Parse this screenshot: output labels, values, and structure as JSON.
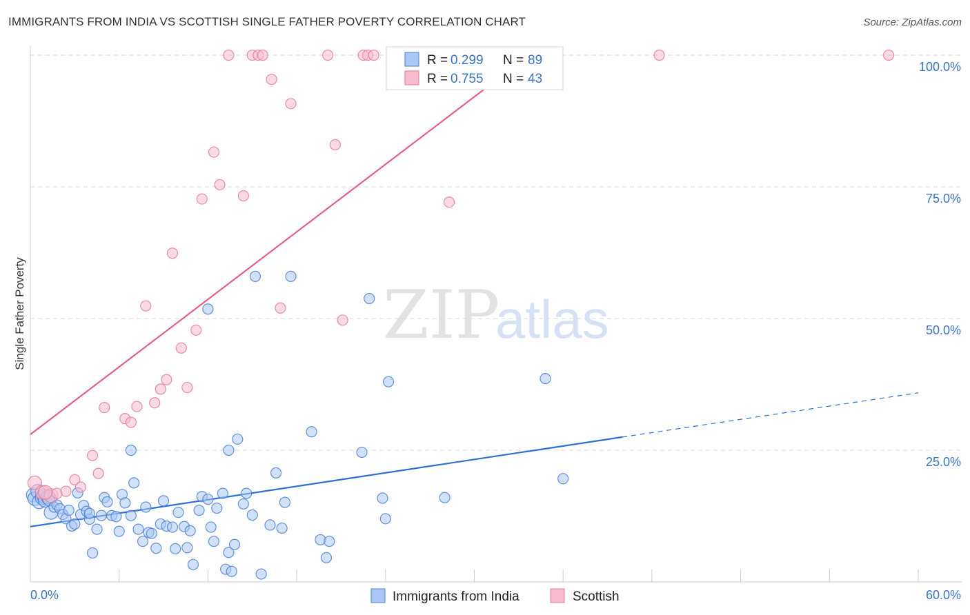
{
  "header": {
    "title": "IMMIGRANTS FROM INDIA VS SCOTTISH SINGLE FATHER POVERTY CORRELATION CHART",
    "source": "Source: ZipAtlas.com"
  },
  "watermark": {
    "zip": "ZIP",
    "atlas": "atlas"
  },
  "colors": {
    "blue": "#4a7fd4",
    "blue_fill": "#a9c8f3",
    "blue_line": "#2d6fd0",
    "pink": "#e8799b",
    "pink_fill": "#f6bccd",
    "pink_line": "#e0608a",
    "tick_text": "#3a74c4",
    "grid": "#d8d8d8"
  },
  "legend_top": {
    "rows": [
      {
        "r_label": "R = ",
        "r_value": "0.299",
        "n_label": "N = ",
        "n_value": "89",
        "color": "blue"
      },
      {
        "r_label": "R = ",
        "r_value": "0.755",
        "n_label": "N = ",
        "n_value": "43",
        "color": "pink"
      }
    ]
  },
  "legend_bottom": [
    {
      "label": "Immigrants from India",
      "color": "blue"
    },
    {
      "label": "Scottish",
      "color": "pink"
    }
  ],
  "chart_data": {
    "type": "scatter",
    "title": "IMMIGRANTS FROM INDIA VS SCOTTISH SINGLE FATHER POVERTY CORRELATION CHART",
    "xlabel": "",
    "ylabel": "Single Father Poverty",
    "xlim": [
      0,
      60
    ],
    "ylim": [
      0,
      100
    ],
    "x_tick_labels": [
      "0.0%",
      "60.0%"
    ],
    "y_tick_labels": [
      "25.0%",
      "50.0%",
      "75.0%",
      "100.0%"
    ],
    "y_ticks": [
      25,
      50,
      75,
      100
    ],
    "x_ticks": [
      0,
      6,
      12,
      18,
      24,
      30,
      36,
      42,
      48,
      54,
      60
    ],
    "grid": true,
    "series": [
      {
        "name": "Immigrants from India",
        "color": "blue",
        "trend": {
          "x0": 0,
          "y0": 10.5,
          "x1": 40,
          "y1": 27.5,
          "dash_to_x": 60,
          "dash_to_y": 35.9
        },
        "points": [
          [
            0.2,
            16.5
          ],
          [
            0.3,
            15.8
          ],
          [
            0.5,
            17.2
          ],
          [
            0.6,
            15.2
          ],
          [
            0.8,
            16.0
          ],
          [
            0.9,
            16.3
          ],
          [
            1.0,
            15.5
          ],
          [
            1.2,
            16.1
          ],
          [
            1.3,
            15.7
          ],
          [
            1.4,
            13.2
          ],
          [
            1.6,
            14.2
          ],
          [
            1.8,
            14.6
          ],
          [
            2.0,
            13.9
          ],
          [
            2.2,
            12.8
          ],
          [
            2.4,
            12.0
          ],
          [
            2.6,
            13.6
          ],
          [
            2.8,
            10.6
          ],
          [
            3.0,
            11.0
          ],
          [
            3.2,
            16.9
          ],
          [
            3.4,
            12.8
          ],
          [
            3.6,
            14.5
          ],
          [
            3.8,
            13.4
          ],
          [
            4.0,
            11.9
          ],
          [
            4.2,
            5.5
          ],
          [
            4.5,
            10.0
          ],
          [
            4.8,
            12.6
          ],
          [
            5.0,
            16.0
          ],
          [
            5.2,
            15.2
          ],
          [
            5.5,
            12.6
          ],
          [
            5.8,
            12.4
          ],
          [
            6.0,
            9.6
          ],
          [
            6.2,
            16.6
          ],
          [
            6.4,
            15.0
          ],
          [
            6.8,
            12.6
          ],
          [
            7.0,
            18.8
          ],
          [
            7.3,
            10.0
          ],
          [
            7.6,
            7.7
          ],
          [
            7.8,
            14.2
          ],
          [
            8.0,
            9.4
          ],
          [
            8.2,
            9.2
          ],
          [
            8.5,
            6.4
          ],
          [
            8.8,
            11.0
          ],
          [
            9.0,
            15.4
          ],
          [
            9.2,
            10.6
          ],
          [
            9.6,
            10.4
          ],
          [
            9.8,
            6.3
          ],
          [
            10.0,
            13.2
          ],
          [
            10.4,
            10.5
          ],
          [
            10.6,
            6.5
          ],
          [
            10.8,
            9.7
          ],
          [
            11.0,
            3.3
          ],
          [
            11.4,
            13.6
          ],
          [
            11.6,
            16.2
          ],
          [
            12.0,
            15.7
          ],
          [
            12.2,
            10.4
          ],
          [
            12.4,
            7.7
          ],
          [
            12.6,
            14.0
          ],
          [
            13.0,
            16.8
          ],
          [
            13.2,
            2.4
          ],
          [
            13.4,
            5.6
          ],
          [
            13.6,
            2.0
          ],
          [
            13.8,
            7.1
          ],
          [
            14.0,
            27.1
          ],
          [
            14.4,
            14.8
          ],
          [
            14.6,
            16.8
          ],
          [
            15.0,
            12.7
          ],
          [
            15.6,
            1.5
          ],
          [
            16.2,
            10.8
          ],
          [
            16.6,
            20.7
          ],
          [
            17.0,
            10.2
          ],
          [
            17.2,
            15.1
          ],
          [
            17.6,
            58.0
          ],
          [
            19.0,
            28.5
          ],
          [
            19.6,
            8.0
          ],
          [
            20.0,
            4.6
          ],
          [
            20.2,
            7.7
          ],
          [
            22.4,
            24.6
          ],
          [
            22.9,
            53.8
          ],
          [
            23.8,
            15.9
          ],
          [
            24.0,
            12.0
          ],
          [
            24.2,
            38.0
          ],
          [
            28.0,
            16.0
          ],
          [
            34.8,
            38.6
          ],
          [
            36.0,
            19.6
          ],
          [
            12.0,
            51.8
          ],
          [
            15.2,
            58.0
          ],
          [
            6.8,
            25.0
          ],
          [
            13.4,
            25.0
          ],
          [
            4.0,
            13.0
          ]
        ]
      },
      {
        "name": "Scottish",
        "color": "pink",
        "trend": {
          "x0": 0,
          "y0": 28.0,
          "x1": 33.7,
          "y1": 100
        },
        "points": [
          [
            0.3,
            18.8
          ],
          [
            0.8,
            17.0
          ],
          [
            1.4,
            16.4
          ],
          [
            1.8,
            16.8
          ],
          [
            2.4,
            17.2
          ],
          [
            3.0,
            19.4
          ],
          [
            3.4,
            18.0
          ],
          [
            4.2,
            24.0
          ],
          [
            4.6,
            20.6
          ],
          [
            5.0,
            33.1
          ],
          [
            6.4,
            31.0
          ],
          [
            6.8,
            30.3
          ],
          [
            7.2,
            33.3
          ],
          [
            7.8,
            52.4
          ],
          [
            8.4,
            34.0
          ],
          [
            8.8,
            36.6
          ],
          [
            9.2,
            38.4
          ],
          [
            9.6,
            62.4
          ],
          [
            10.2,
            44.4
          ],
          [
            10.6,
            36.9
          ],
          [
            11.2,
            47.8
          ],
          [
            11.6,
            72.7
          ],
          [
            12.4,
            81.6
          ],
          [
            12.8,
            75.4
          ],
          [
            14.4,
            73.3
          ],
          [
            13.4,
            100
          ],
          [
            15.0,
            100
          ],
          [
            15.4,
            100
          ],
          [
            15.7,
            100
          ],
          [
            16.3,
            95.4
          ],
          [
            16.9,
            52.0
          ],
          [
            17.6,
            90.8
          ],
          [
            20.1,
            100
          ],
          [
            20.6,
            83.0
          ],
          [
            21.1,
            49.7
          ],
          [
            22.5,
            100
          ],
          [
            22.8,
            100
          ],
          [
            23.2,
            100
          ],
          [
            28.3,
            72.1
          ],
          [
            32.7,
            100
          ],
          [
            42.5,
            100
          ],
          [
            58.0,
            100
          ],
          [
            1.0,
            17.0
          ]
        ]
      }
    ]
  }
}
